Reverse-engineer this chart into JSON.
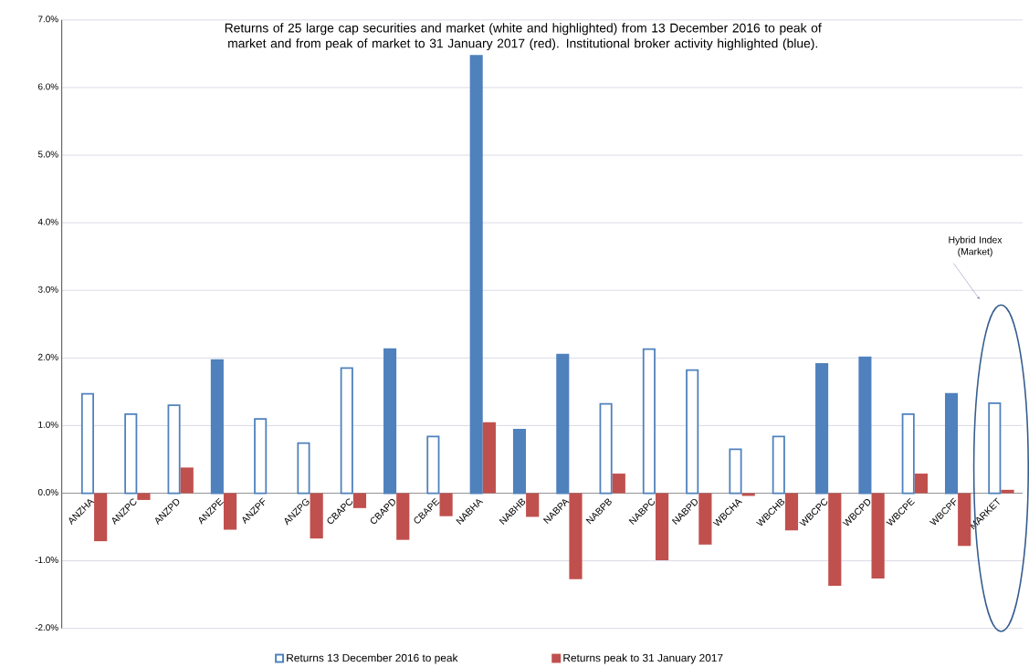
{
  "chart_data": {
    "type": "bar",
    "title": "Returns of 25 large cap securities and market (white and highlighted) from 13 December 2016 to peak of market and from peak of market to 31 January 2017 (red). Institutional broker activity highlighted (blue).",
    "categories": [
      "ANZHA",
      "ANZPC",
      "ANZPD",
      "ANZPE",
      "ANZPF",
      "ANZPG",
      "CBAPC",
      "CBAPD",
      "CBAPE",
      "NABHA",
      "NABHB",
      "NABPA",
      "NABPB",
      "NABPC",
      "NABPD",
      "WBCHA",
      "WBCHB",
      "WBCPC",
      "WBCPD",
      "WBCPE",
      "WBCPF",
      "MARKET"
    ],
    "series": [
      {
        "name": "Returns 13 December 2016 to peak",
        "color": "#4f81bd",
        "colors": [
          "#ffffff",
          "#ffffff",
          "#ffffff",
          "#4f81bd",
          "#ffffff",
          "#ffffff",
          "#ffffff",
          "#4f81bd",
          "#ffffff",
          "#4f81bd",
          "#4f81bd",
          "#4f81bd",
          "#ffffff",
          "#ffffff",
          "#ffffff",
          "#ffffff",
          "#ffffff",
          "#4f81bd",
          "#4f81bd",
          "#ffffff",
          "#4f81bd",
          "#ffffff"
        ],
        "values": [
          1.47,
          1.17,
          1.3,
          1.97,
          1.1,
          0.74,
          1.85,
          2.13,
          0.84,
          6.47,
          0.94,
          2.05,
          1.32,
          2.13,
          1.82,
          0.65,
          0.84,
          1.91,
          2.01,
          1.17,
          1.47,
          1.33
        ]
      },
      {
        "name": "Returns peak to 31 January 2017",
        "color": "#c0504d",
        "values": [
          -0.71,
          -0.1,
          0.38,
          -0.54,
          0,
          -0.67,
          -0.22,
          -0.69,
          -0.34,
          1.05,
          -0.35,
          -1.27,
          0.29,
          -0.99,
          -0.76,
          -0.04,
          -0.55,
          -1.37,
          -1.26,
          0.29,
          -0.78,
          0.05
        ]
      }
    ],
    "ylim": [
      -2,
      7
    ],
    "yticks": [
      {
        "value": -2,
        "label": "-2.0%"
      },
      {
        "value": -1,
        "label": "-1.0%"
      },
      {
        "value": 0,
        "label": "0.0%"
      },
      {
        "value": 1,
        "label": "1.0%"
      },
      {
        "value": 2,
        "label": "2.0%"
      },
      {
        "value": 3,
        "label": "3.0%"
      },
      {
        "value": 4,
        "label": "4.0%"
      },
      {
        "value": 5,
        "label": "5.0%"
      },
      {
        "value": 6,
        "label": "6.0%"
      },
      {
        "value": 7,
        "label": "7.0%"
      }
    ],
    "grid": "y",
    "legend": "bottom",
    "annotations": [
      "Hybrid Index (Market)"
    ]
  }
}
